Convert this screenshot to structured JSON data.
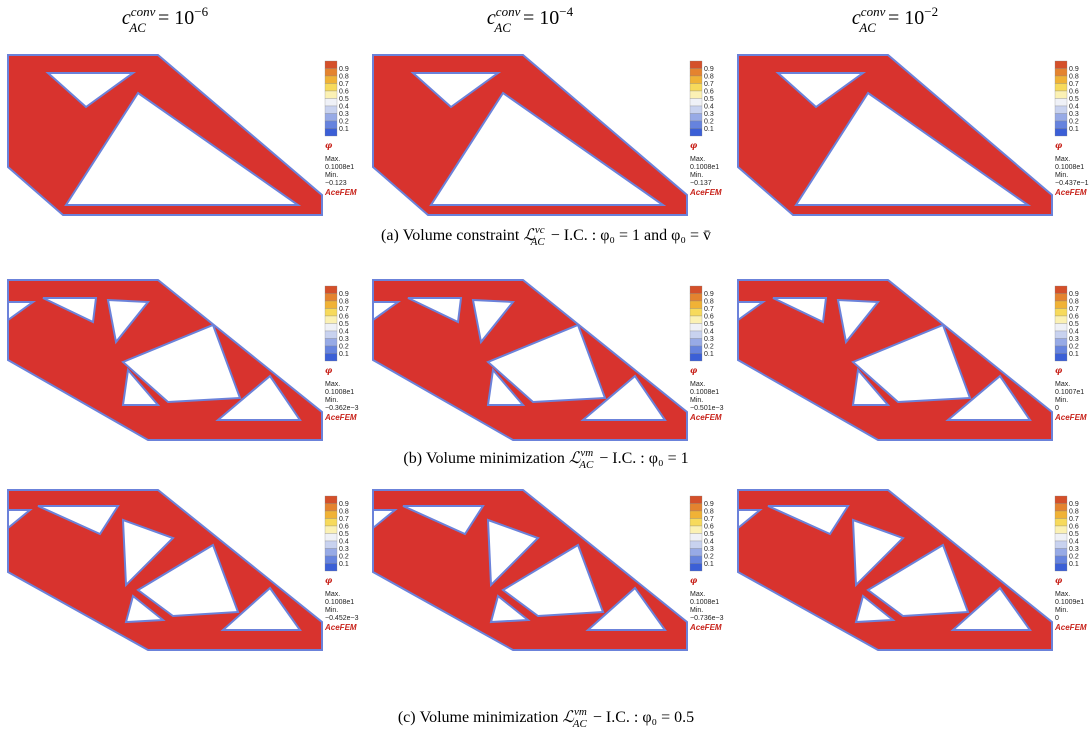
{
  "columns": [
    {
      "symbol": "c",
      "sup": "conv",
      "sub": "AC",
      "relation": "= 10",
      "exponent": "−6"
    },
    {
      "symbol": "c",
      "sup": "conv",
      "sub": "AC",
      "relation": "= 10",
      "exponent": "−4"
    },
    {
      "symbol": "c",
      "sup": "conv",
      "sub": "AC",
      "relation": "= 10",
      "exponent": "−2"
    }
  ],
  "legend": {
    "ticks": [
      "0.9",
      "0.8",
      "0.7",
      "0.6",
      "0.5",
      "0.4",
      "0.3",
      "0.2",
      "0.1"
    ],
    "field": "φ",
    "max_label": "Max.",
    "min_label": "Min.",
    "brand": "AceFEM"
  },
  "rows": [
    {
      "caption": {
        "label": "(a)",
        "text": "Volume constraint",
        "symbol": "ℒ",
        "sup": "vc",
        "sub": "AC",
        "condition": "− I.C. : φ₀ = 1 and φ₀ = v̄"
      },
      "panels": [
        {
          "max": "0.1008e1",
          "min": "−0.123"
        },
        {
          "max": "0.1008e1",
          "min": "−0.137"
        },
        {
          "max": "0.1008e1",
          "min": "−0.437e−1"
        }
      ]
    },
    {
      "caption": {
        "label": "(b)",
        "text": "Volume minimization",
        "symbol": "ℒ",
        "sup": "vm",
        "sub": "AC",
        "condition": "− I.C. : φ₀ = 1"
      },
      "panels": [
        {
          "max": "0.1008e1",
          "min": "−0.362e−3"
        },
        {
          "max": "0.1008e1",
          "min": "−0.501e−3"
        },
        {
          "max": "0.1007e1",
          "min": "0"
        }
      ]
    },
    {
      "caption": {
        "label": "(c)",
        "text": "Volume minimization",
        "symbol": "ℒ",
        "sup": "vm",
        "sub": "AC",
        "condition": "− I.C. : φ₀ = 0.5"
      },
      "panels": [
        {
          "max": "0.1008e1",
          "min": "−0.452e−3"
        },
        {
          "max": "0.1008e1",
          "min": "−0.736e−3"
        },
        {
          "max": "0.1009e1",
          "min": "0"
        }
      ]
    }
  ]
}
